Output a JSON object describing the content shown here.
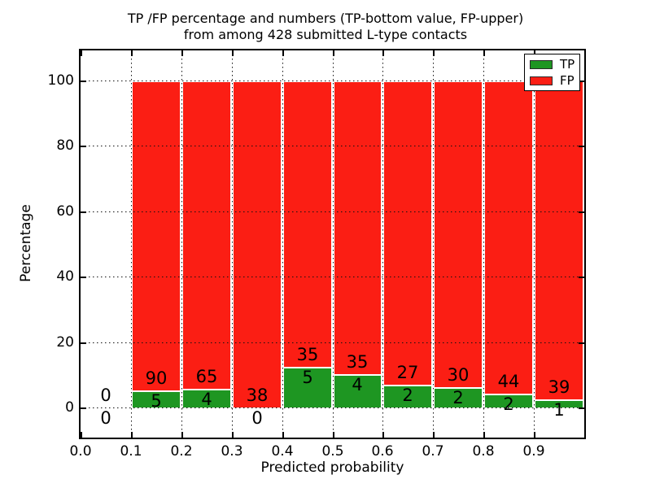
{
  "title": {
    "line1": "TP /FP percentage and numbers (TP-bottom value, FP-upper)",
    "line2": "from among 428 submitted L-type contacts"
  },
  "axes": {
    "xlabel": "Predicted probability",
    "ylabel": "Percentage"
  },
  "legend": {
    "position": "upper right",
    "items": [
      {
        "label": "TP",
        "color_key": "tp"
      },
      {
        "label": "FP",
        "color_key": "fp"
      }
    ]
  },
  "colors": {
    "tp": "#1e9622",
    "fp": "#fb1e14",
    "bar_edge": "#ffffff",
    "grid": "#111111",
    "spine": "#000000",
    "text": "#000000",
    "background": "#ffffff"
  },
  "chart_data": {
    "type": "bar",
    "stacked": true,
    "title": "TP /FP percentage and numbers (TP-bottom value, FP-upper) from among 428 submitted L-type contacts",
    "xlabel": "Predicted probability",
    "ylabel": "Percentage",
    "total_submitted": 428,
    "bin_edges": [
      0.0,
      0.1,
      0.2,
      0.3,
      0.4,
      0.5,
      0.6,
      0.7,
      0.8,
      0.9,
      1.0
    ],
    "series": [
      {
        "name": "TP",
        "color_key": "tp",
        "counts": [
          0,
          5,
          4,
          0,
          5,
          4,
          2,
          2,
          2,
          1
        ]
      },
      {
        "name": "FP",
        "color_key": "fp",
        "counts": [
          0,
          90,
          65,
          38,
          35,
          35,
          27,
          30,
          44,
          39
        ]
      }
    ],
    "tp_percent_of_bin": [
      0,
      5.26,
      5.8,
      0,
      12.5,
      10.26,
      6.9,
      6.25,
      4.35,
      2.5
    ],
    "bars_stack_to_percent": 100,
    "xlim": [
      0.0,
      1.0
    ],
    "ylim": [
      -10,
      110
    ],
    "x_tick_values": [
      0.0,
      0.1,
      0.2,
      0.3,
      0.4,
      0.5,
      0.6,
      0.7,
      0.8,
      0.9,
      1.0
    ],
    "x_tick_labels": [
      "0.0",
      "0.1",
      "0.2",
      "0.3",
      "0.4",
      "0.5",
      "0.6",
      "0.7",
      "0.8",
      "0.9",
      ""
    ],
    "y_tick_values": [
      0,
      20,
      40,
      60,
      80,
      100
    ],
    "y_tick_labels": [
      "0",
      "20",
      "40",
      "60",
      "80",
      "100"
    ],
    "grid": "dotted, drawn above bars",
    "legend_position": "upper right"
  }
}
